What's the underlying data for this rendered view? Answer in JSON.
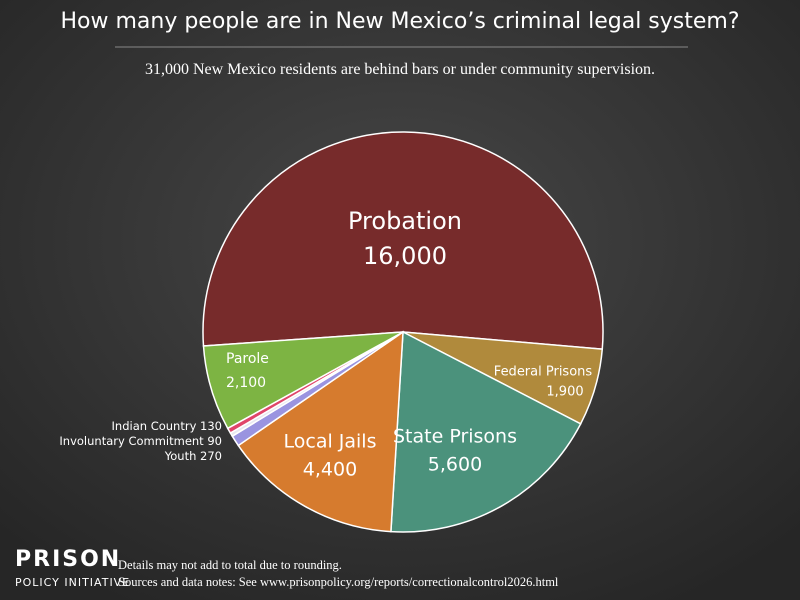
{
  "chart_data": {
    "type": "pie",
    "title": "How many people are in New Mexico’s criminal legal system?",
    "subtitle": "31,000 New Mexico residents are behind bars or under community supervision.",
    "categories": [
      "Probation",
      "Federal Prisons",
      "State Prisons",
      "Local Jails",
      "Youth",
      "Involuntary Commitment",
      "Indian Country",
      "Parole"
    ],
    "values": [
      16000,
      1900,
      5600,
      4400,
      270,
      90,
      130,
      2100
    ],
    "value_labels": [
      "16,000",
      "1,900",
      "5,600",
      "4,400",
      "270",
      "90",
      "130",
      "2,100"
    ],
    "colors": [
      "#772b2b",
      "#b08a3c",
      "#4b927c",
      "#d67b2e",
      "#9a94e0",
      "#e8e8f0",
      "#e0456a",
      "#7db443"
    ]
  },
  "footer": {
    "notes": [
      "Details may not add to total due to rounding.",
      "Sources and data notes: See www.prisonpolicy.org/reports/correctionalcontrol2026.html"
    ]
  },
  "logo": {
    "line1": "PRISON",
    "line2": "POLICY INITIATIVE"
  }
}
